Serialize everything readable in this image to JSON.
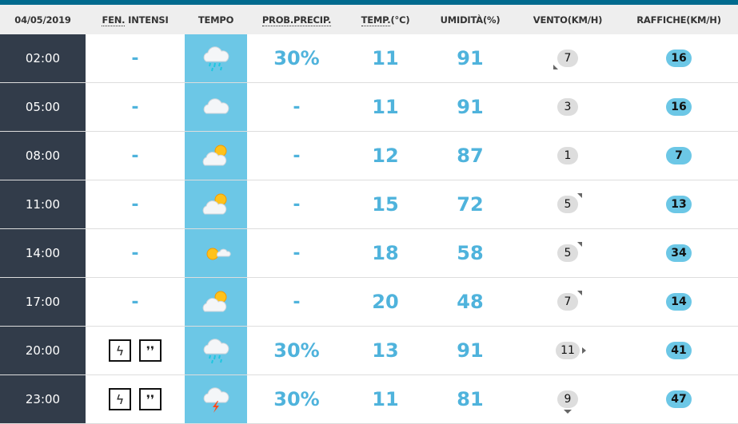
{
  "header": {
    "date": "04/05/2019",
    "fen": "FEN.",
    "fen_rest": " INTENSI",
    "tempo": "TEMPO",
    "prob": "PROB.PRECIP.",
    "temp": "TEMP.",
    "temp_rest": "(°C)",
    "umid": "UMIDITÀ(%)",
    "vento": "VENTO(KM/H)",
    "raffiche": "RAFFICHE(KM/H)"
  },
  "colors": {
    "topbar": "#006a8e",
    "time_bg": "#323c4a",
    "tempo_bg": "#6cc7e6",
    "value": "#4fb3dc",
    "gust_bg": "#6cc7e6"
  },
  "rows": [
    {
      "time": "02:00",
      "fen": "-",
      "fen_icons": [],
      "icon": "cloud-rain",
      "prob": "30%",
      "temp": "11",
      "umid": "91",
      "wind": "7",
      "wind_dir": "SW",
      "gust": "16"
    },
    {
      "time": "05:00",
      "fen": "-",
      "fen_icons": [],
      "icon": "cloud",
      "prob": "-",
      "temp": "11",
      "umid": "91",
      "wind": "3",
      "wind_dir": "",
      "gust": "16"
    },
    {
      "time": "08:00",
      "fen": "-",
      "fen_icons": [],
      "icon": "sun-cloud",
      "prob": "-",
      "temp": "12",
      "umid": "87",
      "wind": "1",
      "wind_dir": "",
      "gust": "7"
    },
    {
      "time": "11:00",
      "fen": "-",
      "fen_icons": [],
      "icon": "sun-cloud",
      "prob": "-",
      "temp": "15",
      "umid": "72",
      "wind": "5",
      "wind_dir": "NE",
      "gust": "13"
    },
    {
      "time": "14:00",
      "fen": "-",
      "fen_icons": [],
      "icon": "sun-small-cloud",
      "prob": "-",
      "temp": "18",
      "umid": "58",
      "wind": "5",
      "wind_dir": "NE",
      "gust": "34"
    },
    {
      "time": "17:00",
      "fen": "-",
      "fen_icons": [],
      "icon": "sun-cloud",
      "prob": "-",
      "temp": "20",
      "umid": "48",
      "wind": "7",
      "wind_dir": "NE",
      "gust": "14"
    },
    {
      "time": "20:00",
      "fen": "",
      "fen_icons": [
        "lightning",
        "heavy-rain"
      ],
      "icon": "cloud-rain",
      "prob": "30%",
      "temp": "13",
      "umid": "91",
      "wind": "11",
      "wind_dir": "E",
      "gust": "41"
    },
    {
      "time": "23:00",
      "fen": "",
      "fen_icons": [
        "lightning",
        "heavy-rain"
      ],
      "icon": "cloud-thunder",
      "prob": "30%",
      "temp": "11",
      "umid": "81",
      "wind": "9",
      "wind_dir": "S",
      "gust": "47"
    }
  ]
}
